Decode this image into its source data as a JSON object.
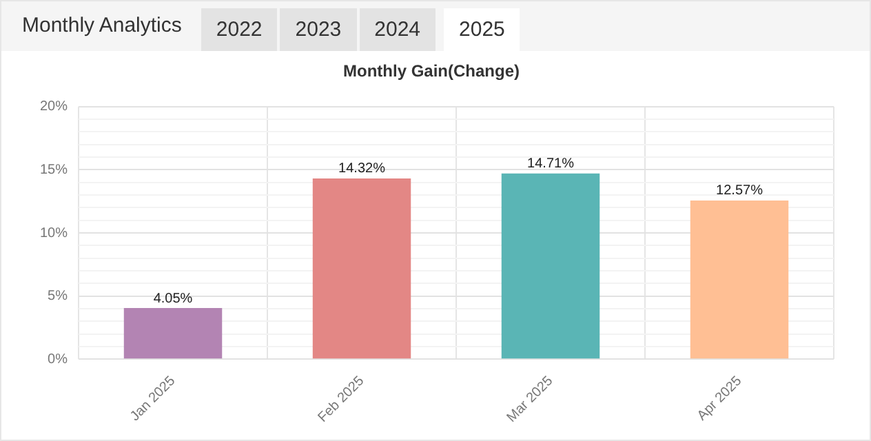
{
  "chart_data": {
    "type": "bar",
    "title": "Monthly Gain(Change)",
    "annotations": [
      "Monthly Analytics",
      "2022",
      "2023",
      "2024",
      "2025"
    ],
    "categories": [
      "Jan 2025",
      "Feb 2025",
      "Mar 2025",
      "Apr 2025"
    ],
    "values": [
      4.05,
      14.32,
      14.71,
      12.57
    ],
    "colors": [
      "#b384b3",
      "#e38785",
      "#5ab5b5",
      "#ffbf94"
    ],
    "value_labels": [
      "4.05%",
      "14.32%",
      "14.71%",
      "12.57%"
    ],
    "ylim": [
      0,
      20
    ],
    "yticks": [
      {
        "value": 0,
        "label": "0%"
      },
      {
        "value": 1,
        "label": null
      },
      {
        "value": 2,
        "label": null
      },
      {
        "value": 3,
        "label": null
      },
      {
        "value": 4,
        "label": null
      },
      {
        "value": 5,
        "label": "5%"
      },
      {
        "value": 6,
        "label": null
      },
      {
        "value": 7,
        "label": null
      },
      {
        "value": 8,
        "label": null
      },
      {
        "value": 9,
        "label": null
      },
      {
        "value": 10,
        "label": "10%"
      },
      {
        "value": 11,
        "label": null
      },
      {
        "value": 12,
        "label": null
      },
      {
        "value": 13,
        "label": null
      },
      {
        "value": 14,
        "label": null
      },
      {
        "value": 15,
        "label": "15%"
      },
      {
        "value": 16,
        "label": null
      },
      {
        "value": 17,
        "label": null
      },
      {
        "value": 18,
        "label": null
      },
      {
        "value": 19,
        "label": null
      },
      {
        "value": 20,
        "label": "20%"
      }
    ],
    "grid": true,
    "legend": false
  }
}
